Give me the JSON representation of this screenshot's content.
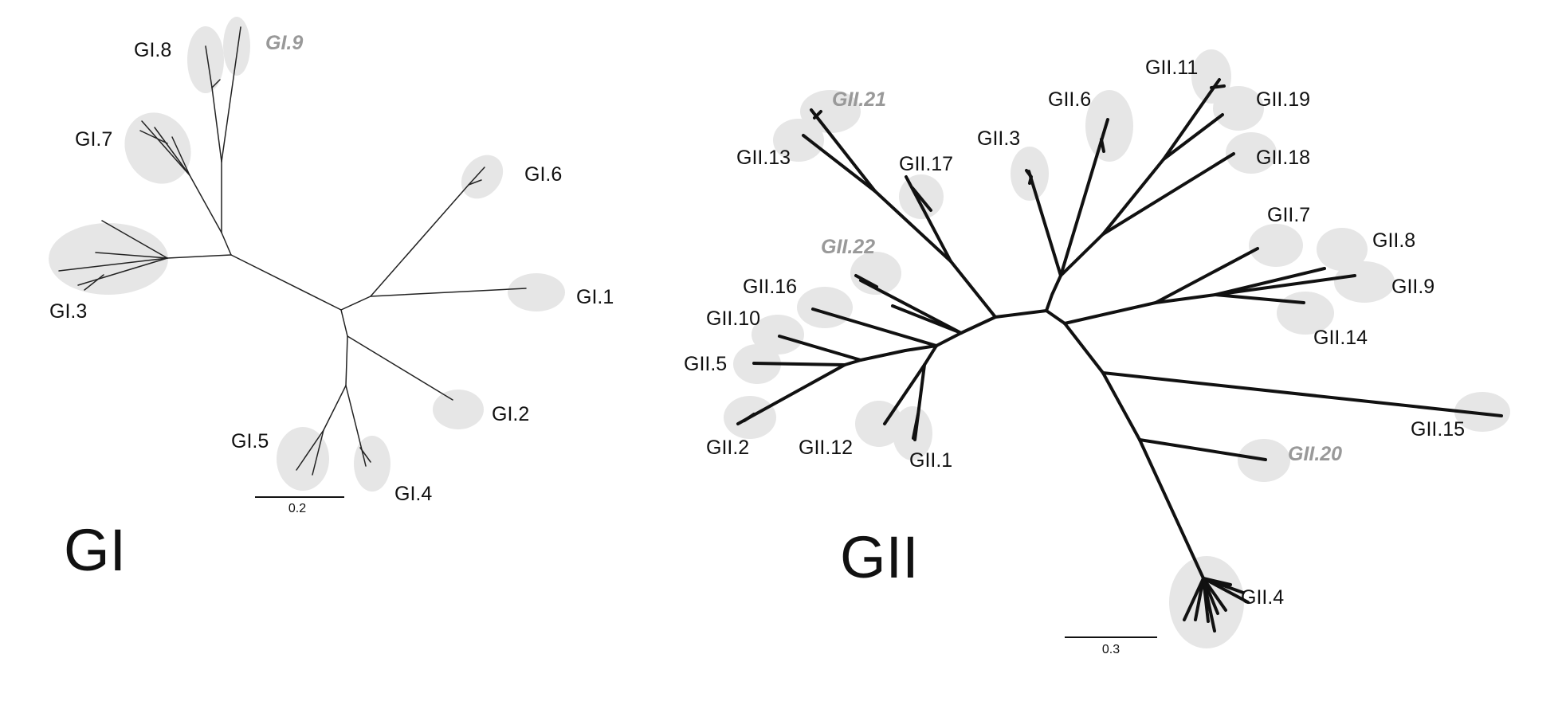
{
  "colors": {
    "highlight": "#e6e6e6",
    "branch": "#111111",
    "novel_label": "#999999",
    "label": "#111111"
  },
  "panels": {
    "gi": {
      "title": "GI",
      "scale_label": "0.2",
      "clades": {
        "c1": {
          "label": "GI.1",
          "novel": false
        },
        "c2": {
          "label": "GI.2",
          "novel": false
        },
        "c3": {
          "label": "GI.3",
          "novel": false
        },
        "c4": {
          "label": "GI.4",
          "novel": false
        },
        "c5": {
          "label": "GI.5",
          "novel": false
        },
        "c6": {
          "label": "GI.6",
          "novel": false
        },
        "c7": {
          "label": "GI.7",
          "novel": false
        },
        "c8": {
          "label": "GI.8",
          "novel": false
        },
        "c9": {
          "label": "GI.9",
          "novel": true
        }
      }
    },
    "gii": {
      "title": "GII",
      "scale_label": "0.3",
      "clades": {
        "c1": {
          "label": "GII.1",
          "novel": false
        },
        "c2": {
          "label": "GII.2",
          "novel": false
        },
        "c3": {
          "label": "GII.3",
          "novel": false
        },
        "c4": {
          "label": "GII.4",
          "novel": false
        },
        "c5": {
          "label": "GII.5",
          "novel": false
        },
        "c6": {
          "label": "GII.6",
          "novel": false
        },
        "c7": {
          "label": "GII.7",
          "novel": false
        },
        "c8": {
          "label": "GII.8",
          "novel": false
        },
        "c9": {
          "label": "GII.9",
          "novel": false
        },
        "c10": {
          "label": "GII.10",
          "novel": false
        },
        "c11": {
          "label": "GII.11",
          "novel": false
        },
        "c12": {
          "label": "GII.12",
          "novel": false
        },
        "c13": {
          "label": "GII.13",
          "novel": false
        },
        "c14": {
          "label": "GII.14",
          "novel": false
        },
        "c15": {
          "label": "GII.15",
          "novel": false
        },
        "c16": {
          "label": "GII.16",
          "novel": false
        },
        "c17": {
          "label": "GII.17",
          "novel": false
        },
        "c18": {
          "label": "GII.18",
          "novel": false
        },
        "c19": {
          "label": "GII.19",
          "novel": false
        },
        "c20": {
          "label": "GII.20",
          "novel": true
        },
        "c21": {
          "label": "GII.21",
          "novel": true
        },
        "c22": {
          "label": "GII.22",
          "novel": true
        }
      }
    }
  }
}
